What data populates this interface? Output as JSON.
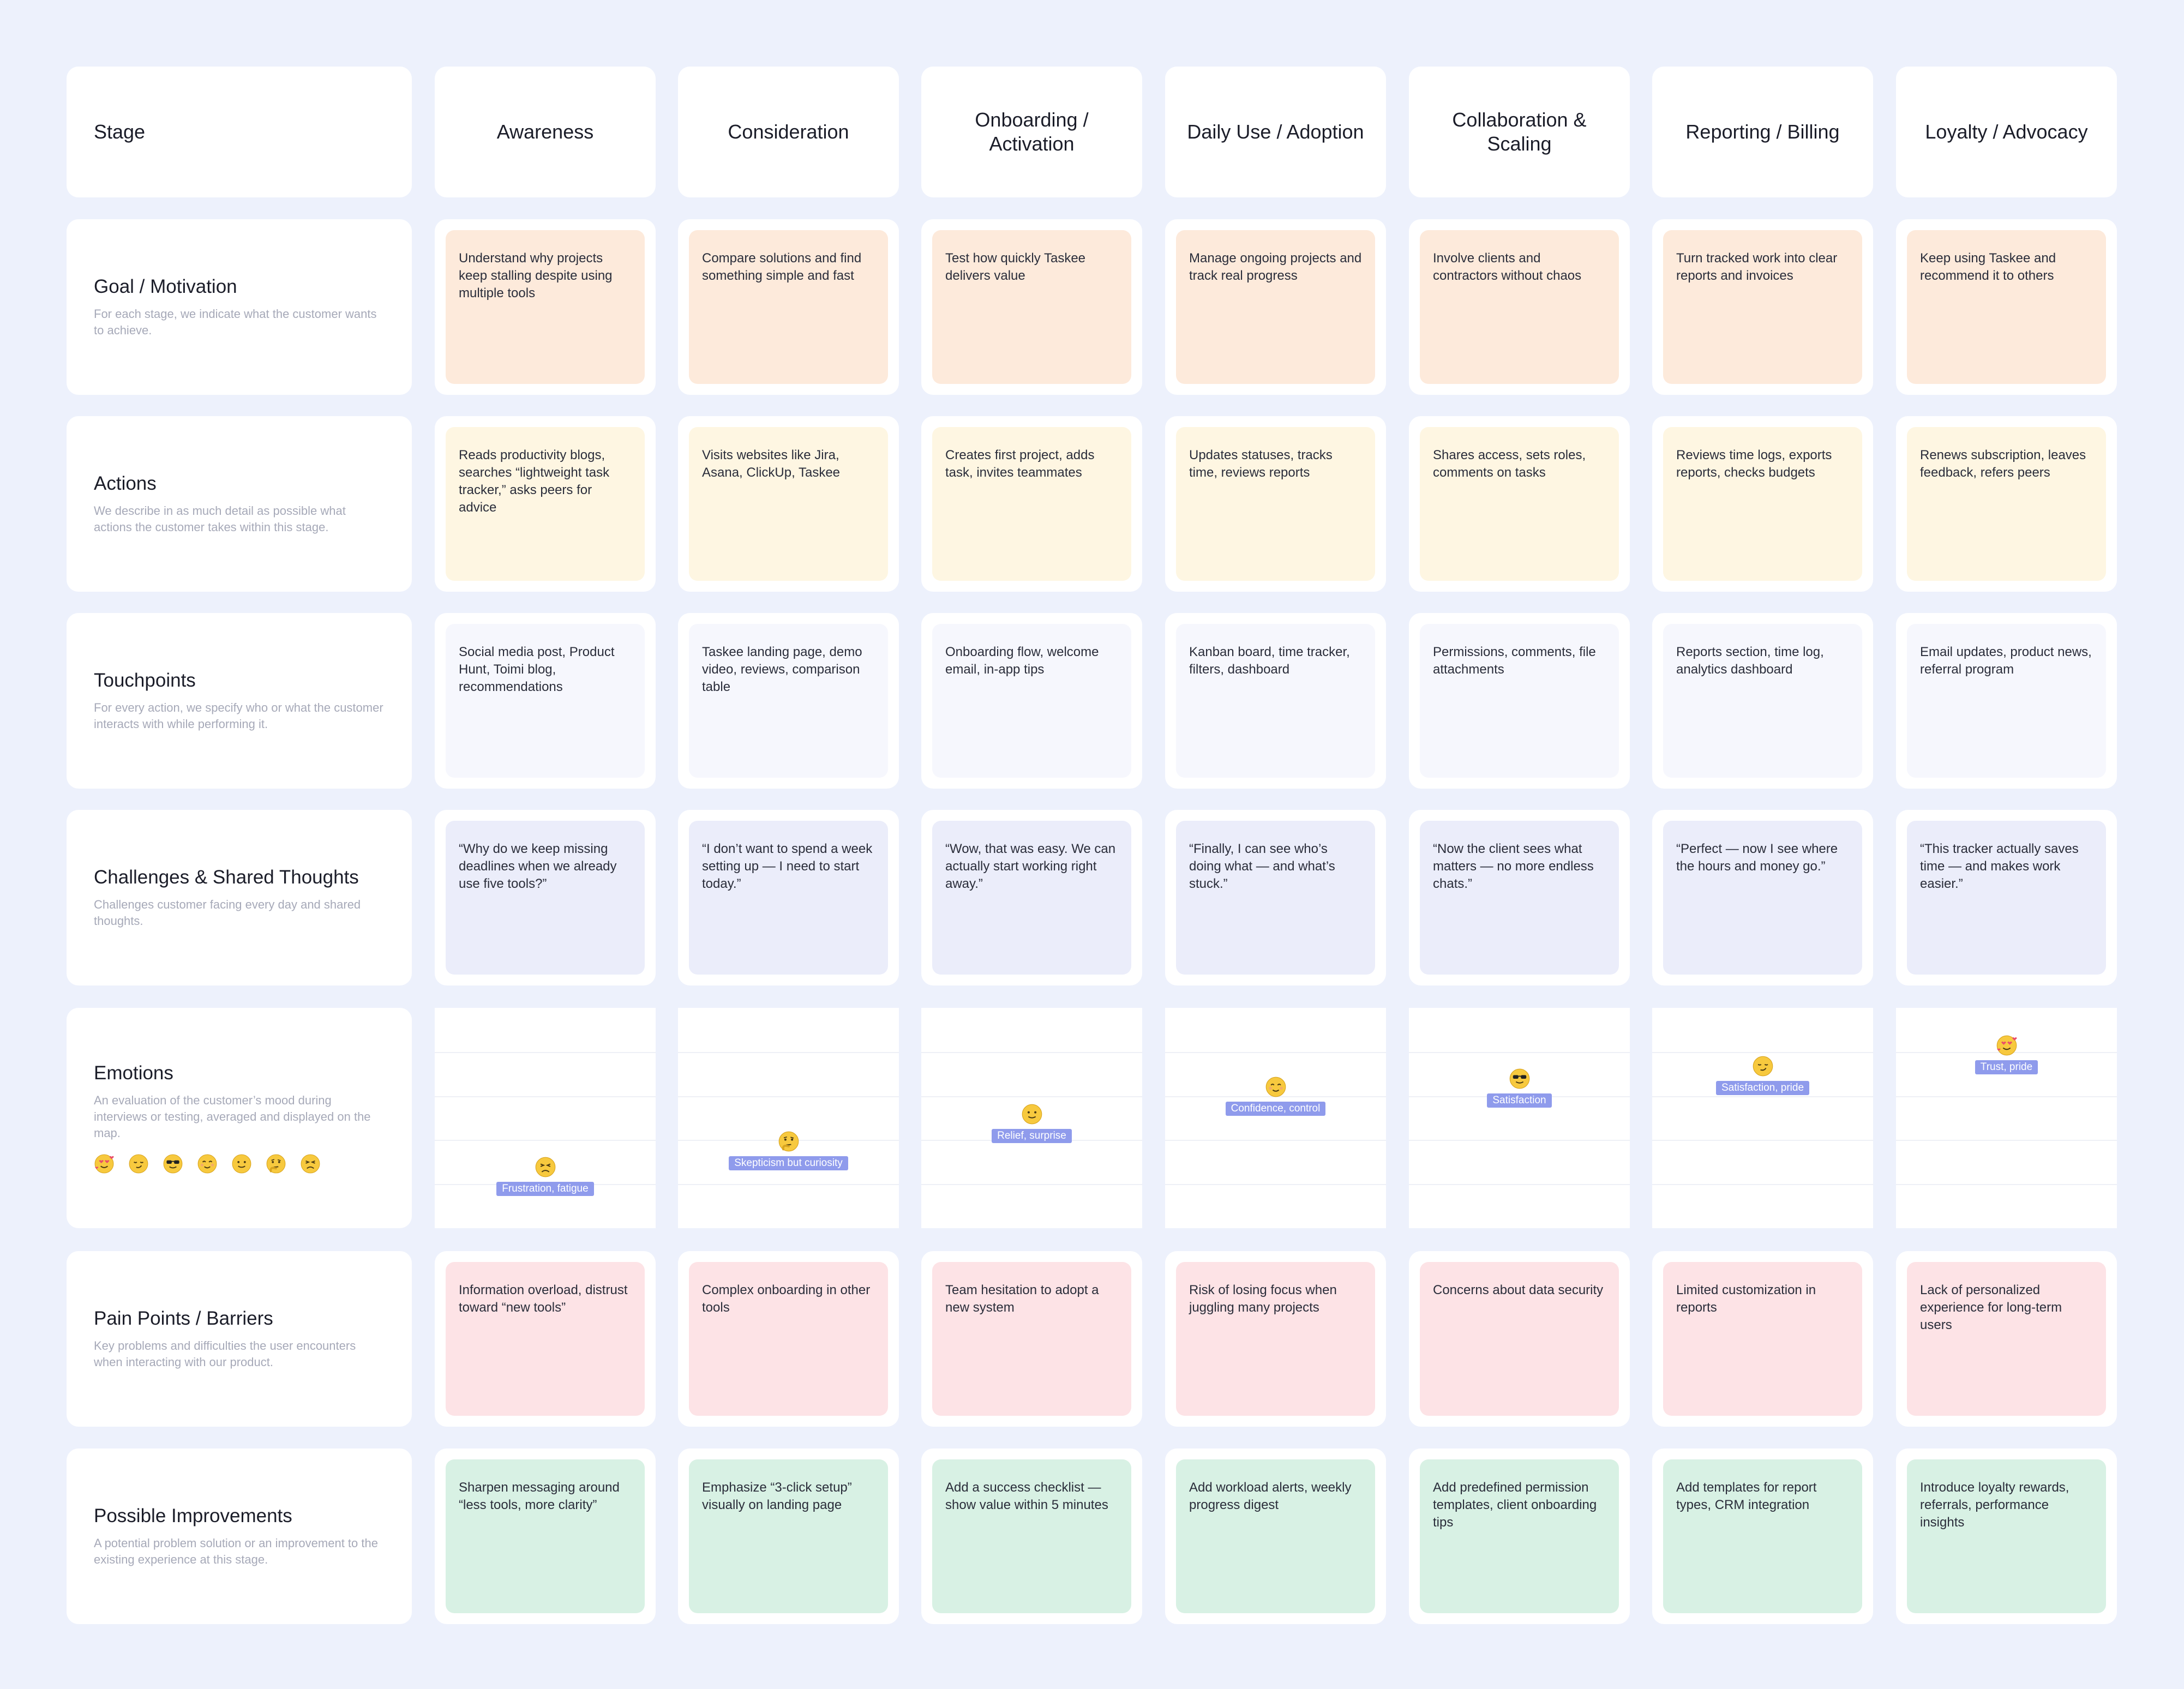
{
  "header": {
    "stage_label": "Stage",
    "stages": [
      "Awareness",
      "Consideration",
      "Onboarding / Activation",
      "Daily Use / Adoption",
      "Collaboration & Scaling",
      "Reporting / Billing",
      "Loyalty / Advocacy"
    ]
  },
  "rows": {
    "goal": {
      "title": "Goal / Motivation",
      "desc": "For each stage, we indicate what the customer wants to achieve.",
      "cells": [
        "Understand why projects keep stalling despite using multiple tools",
        "Compare solutions and find something simple and fast",
        "Test how quickly Taskee delivers value",
        "Manage ongoing projects and track real progress",
        "Involve clients and contractors without chaos",
        "Turn tracked work into clear reports and invoices",
        "Keep using Taskee and recommend it to others"
      ]
    },
    "actions": {
      "title": "Actions",
      "desc": "We describe in as much detail as possible what actions the customer takes within this stage.",
      "cells": [
        "Reads productivity blogs, searches “lightweight task tracker,” asks peers for advice",
        "Visits websites like Jira, Asana, ClickUp, Taskee",
        "Creates first project, adds task, invites teammates",
        "Updates statuses, tracks time, reviews reports",
        "Shares access, sets roles, comments on tasks",
        "Reviews time logs, exports reports, checks budgets",
        "Renews subscription, leaves feedback, refers peers"
      ]
    },
    "touchpoints": {
      "title": "Touchpoints",
      "desc": "For every action, we specify who or what the customer interacts with while performing it.",
      "cells": [
        "Social media post, Product Hunt, Toimi blog, recommendations",
        "Taskee landing page, demo video, reviews, comparison table",
        "Onboarding flow, welcome email, in-app tips",
        "Kanban board, time tracker, filters, dashboard",
        "Permissions, comments, file attachments",
        "Reports section, time log, analytics dashboard",
        "Email updates, product news, referral program"
      ]
    },
    "challenges": {
      "title": "Challenges & Shared Thoughts",
      "desc": "Challenges customer facing every day and shared thoughts.",
      "cells": [
        "“Why do we keep missing deadlines when we already use five tools?”",
        "“I don’t want to spend a week setting up — I need to start today.”",
        "“Wow, that was easy. We can actually start working right away.”",
        "“Finally, I can see who’s doing what — and what’s stuck.”",
        "“Now the client sees what matters — no more endless chats.”",
        "“Perfect — now I see where the hours and money go.”",
        "“This tracker actually saves time — and makes work easier.”"
      ]
    },
    "emotions": {
      "title": "Emotions",
      "desc": "An evaluation of the customer’s mood during interviews or testing, averaged and displayed on the map.",
      "scale": [
        "heart-eyes-face-icon",
        "smirk-face-icon",
        "sunglasses-face-icon",
        "relieved-face-icon",
        "slight-smile-face-icon",
        "thinking-face-icon",
        "tired-face-icon"
      ],
      "cells": [
        {
          "label": "Frustration, fatigue",
          "icon": "tired-face-icon",
          "level": 0.17
        },
        {
          "label": "Skepticism but curiosity",
          "icon": "thinking-face-icon",
          "level": 0.33
        },
        {
          "label": "Relief, surprise",
          "icon": "slight-smile-face-icon",
          "level": 0.5
        },
        {
          "label": "Confidence, control",
          "icon": "relieved-face-icon",
          "level": 0.67
        },
        {
          "label": "Satisfaction",
          "icon": "sunglasses-face-icon",
          "level": 0.72
        },
        {
          "label": "Satisfaction, pride",
          "icon": "smirk-face-icon",
          "level": 0.8
        },
        {
          "label": "Trust, pride",
          "icon": "heart-eyes-face-icon",
          "level": 0.93
        }
      ]
    },
    "pain": {
      "title": "Pain Points / Barriers",
      "desc": "Key problems and difficulties the user encounters when interacting with our product.",
      "cells": [
        "Information overload, distrust toward “new tools”",
        "Complex onboarding in other tools",
        "Team hesitation to adopt a new system",
        "Risk of losing focus when juggling many projects",
        "Concerns about data security",
        "Limited customization in reports",
        "Lack of personalized experience for long-term users"
      ]
    },
    "improvements": {
      "title": "Possible Improvements",
      "desc": "A potential problem solution or an improvement to the existing experience at this stage.",
      "cells": [
        "Sharpen messaging around “less tools, more clarity”",
        "Emphasize “3-click setup” visually on landing page",
        "Add a success checklist — show value within 5 minutes",
        "Add workload alerts, weekly progress digest",
        "Add predefined permission templates, client onboarding tips",
        "Add templates for report types, CRM integration",
        "Introduce loyalty rewards, referrals, performance insights"
      ]
    }
  },
  "colors": {
    "background": "#edf1fc",
    "goal": "#fdeadb",
    "actions": "#fef6e2",
    "touchpoints": "#f6f7fd",
    "challenges": "#ebedfa",
    "pain": "#fde3e6",
    "improvements": "#d8f1e4",
    "emotion_label": "#8f9bec"
  }
}
